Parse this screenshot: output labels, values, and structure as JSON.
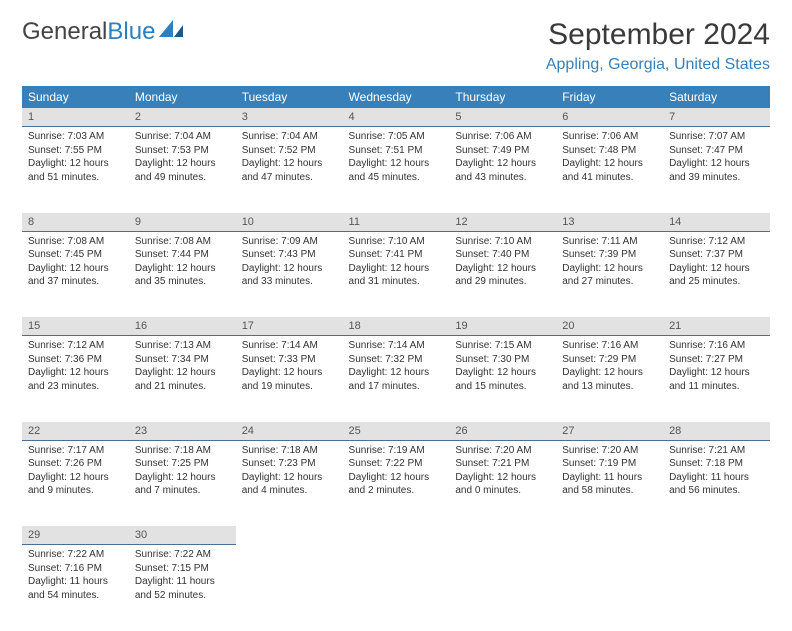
{
  "logo": {
    "dark": "General",
    "blue": "Blue"
  },
  "title": "September 2024",
  "location": "Appling, Georgia, United States",
  "colors": {
    "header_bg": "#3880b9",
    "header_text": "#ffffff",
    "daynum_bg": "#e2e2e2",
    "body_text": "#333333",
    "location_text": "#3880b9",
    "rule": "#496f91"
  },
  "day_headers": [
    "Sunday",
    "Monday",
    "Tuesday",
    "Wednesday",
    "Thursday",
    "Friday",
    "Saturday"
  ],
  "weeks": [
    {
      "nums": [
        "1",
        "2",
        "3",
        "4",
        "5",
        "6",
        "7"
      ],
      "cells": [
        {
          "sunrise": "Sunrise: 7:03 AM",
          "sunset": "Sunset: 7:55 PM",
          "daylight": "Daylight: 12 hours and 51 minutes."
        },
        {
          "sunrise": "Sunrise: 7:04 AM",
          "sunset": "Sunset: 7:53 PM",
          "daylight": "Daylight: 12 hours and 49 minutes."
        },
        {
          "sunrise": "Sunrise: 7:04 AM",
          "sunset": "Sunset: 7:52 PM",
          "daylight": "Daylight: 12 hours and 47 minutes."
        },
        {
          "sunrise": "Sunrise: 7:05 AM",
          "sunset": "Sunset: 7:51 PM",
          "daylight": "Daylight: 12 hours and 45 minutes."
        },
        {
          "sunrise": "Sunrise: 7:06 AM",
          "sunset": "Sunset: 7:49 PM",
          "daylight": "Daylight: 12 hours and 43 minutes."
        },
        {
          "sunrise": "Sunrise: 7:06 AM",
          "sunset": "Sunset: 7:48 PM",
          "daylight": "Daylight: 12 hours and 41 minutes."
        },
        {
          "sunrise": "Sunrise: 7:07 AM",
          "sunset": "Sunset: 7:47 PM",
          "daylight": "Daylight: 12 hours and 39 minutes."
        }
      ]
    },
    {
      "nums": [
        "8",
        "9",
        "10",
        "11",
        "12",
        "13",
        "14"
      ],
      "cells": [
        {
          "sunrise": "Sunrise: 7:08 AM",
          "sunset": "Sunset: 7:45 PM",
          "daylight": "Daylight: 12 hours and 37 minutes."
        },
        {
          "sunrise": "Sunrise: 7:08 AM",
          "sunset": "Sunset: 7:44 PM",
          "daylight": "Daylight: 12 hours and 35 minutes."
        },
        {
          "sunrise": "Sunrise: 7:09 AM",
          "sunset": "Sunset: 7:43 PM",
          "daylight": "Daylight: 12 hours and 33 minutes."
        },
        {
          "sunrise": "Sunrise: 7:10 AM",
          "sunset": "Sunset: 7:41 PM",
          "daylight": "Daylight: 12 hours and 31 minutes."
        },
        {
          "sunrise": "Sunrise: 7:10 AM",
          "sunset": "Sunset: 7:40 PM",
          "daylight": "Daylight: 12 hours and 29 minutes."
        },
        {
          "sunrise": "Sunrise: 7:11 AM",
          "sunset": "Sunset: 7:39 PM",
          "daylight": "Daylight: 12 hours and 27 minutes."
        },
        {
          "sunrise": "Sunrise: 7:12 AM",
          "sunset": "Sunset: 7:37 PM",
          "daylight": "Daylight: 12 hours and 25 minutes."
        }
      ]
    },
    {
      "nums": [
        "15",
        "16",
        "17",
        "18",
        "19",
        "20",
        "21"
      ],
      "cells": [
        {
          "sunrise": "Sunrise: 7:12 AM",
          "sunset": "Sunset: 7:36 PM",
          "daylight": "Daylight: 12 hours and 23 minutes."
        },
        {
          "sunrise": "Sunrise: 7:13 AM",
          "sunset": "Sunset: 7:34 PM",
          "daylight": "Daylight: 12 hours and 21 minutes."
        },
        {
          "sunrise": "Sunrise: 7:14 AM",
          "sunset": "Sunset: 7:33 PM",
          "daylight": "Daylight: 12 hours and 19 minutes."
        },
        {
          "sunrise": "Sunrise: 7:14 AM",
          "sunset": "Sunset: 7:32 PM",
          "daylight": "Daylight: 12 hours and 17 minutes."
        },
        {
          "sunrise": "Sunrise: 7:15 AM",
          "sunset": "Sunset: 7:30 PM",
          "daylight": "Daylight: 12 hours and 15 minutes."
        },
        {
          "sunrise": "Sunrise: 7:16 AM",
          "sunset": "Sunset: 7:29 PM",
          "daylight": "Daylight: 12 hours and 13 minutes."
        },
        {
          "sunrise": "Sunrise: 7:16 AM",
          "sunset": "Sunset: 7:27 PM",
          "daylight": "Daylight: 12 hours and 11 minutes."
        }
      ]
    },
    {
      "nums": [
        "22",
        "23",
        "24",
        "25",
        "26",
        "27",
        "28"
      ],
      "cells": [
        {
          "sunrise": "Sunrise: 7:17 AM",
          "sunset": "Sunset: 7:26 PM",
          "daylight": "Daylight: 12 hours and 9 minutes."
        },
        {
          "sunrise": "Sunrise: 7:18 AM",
          "sunset": "Sunset: 7:25 PM",
          "daylight": "Daylight: 12 hours and 7 minutes."
        },
        {
          "sunrise": "Sunrise: 7:18 AM",
          "sunset": "Sunset: 7:23 PM",
          "daylight": "Daylight: 12 hours and 4 minutes."
        },
        {
          "sunrise": "Sunrise: 7:19 AM",
          "sunset": "Sunset: 7:22 PM",
          "daylight": "Daylight: 12 hours and 2 minutes."
        },
        {
          "sunrise": "Sunrise: 7:20 AM",
          "sunset": "Sunset: 7:21 PM",
          "daylight": "Daylight: 12 hours and 0 minutes."
        },
        {
          "sunrise": "Sunrise: 7:20 AM",
          "sunset": "Sunset: 7:19 PM",
          "daylight": "Daylight: 11 hours and 58 minutes."
        },
        {
          "sunrise": "Sunrise: 7:21 AM",
          "sunset": "Sunset: 7:18 PM",
          "daylight": "Daylight: 11 hours and 56 minutes."
        }
      ]
    },
    {
      "nums": [
        "29",
        "30",
        "",
        "",
        "",
        "",
        ""
      ],
      "cells": [
        {
          "sunrise": "Sunrise: 7:22 AM",
          "sunset": "Sunset: 7:16 PM",
          "daylight": "Daylight: 11 hours and 54 minutes."
        },
        {
          "sunrise": "Sunrise: 7:22 AM",
          "sunset": "Sunset: 7:15 PM",
          "daylight": "Daylight: 11 hours and 52 minutes."
        },
        null,
        null,
        null,
        null,
        null
      ]
    }
  ]
}
